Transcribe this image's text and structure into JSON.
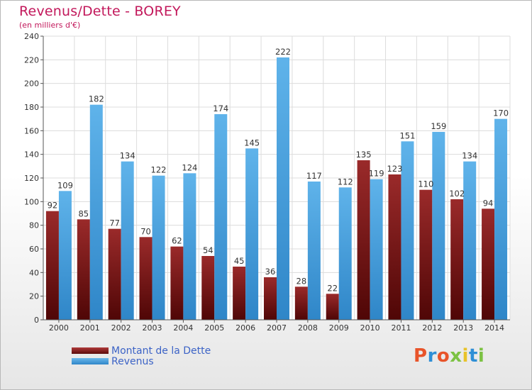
{
  "title": "Revenus/Dette - BOREY",
  "subtitle": "(en milliers d'€)",
  "logo": {
    "text": "Proxiti",
    "colors": [
      "#e8542a",
      "#2e8fd6",
      "#e8542a",
      "#7cc243",
      "#e8c32a",
      "#2e8fd6",
      "#7cc243"
    ]
  },
  "legend": [
    {
      "label": "Montant de la Dette",
      "color": "#7a1a1a"
    },
    {
      "label": "Revenus",
      "color": "#4aa3e0"
    }
  ],
  "chart_data": {
    "type": "bar",
    "categories": [
      "2000",
      "2001",
      "2002",
      "2003",
      "2004",
      "2005",
      "2006",
      "2007",
      "2008",
      "2009",
      "2010",
      "2011",
      "2012",
      "2013",
      "2014"
    ],
    "series": [
      {
        "name": "Montant de la Dette",
        "color": "#7a1a1a",
        "values": [
          92,
          85,
          77,
          70,
          62,
          54,
          45,
          36,
          28,
          22,
          135,
          123,
          110,
          102,
          94
        ]
      },
      {
        "name": "Revenus",
        "color": "#4aa3e0",
        "values": [
          109,
          182,
          134,
          122,
          124,
          174,
          145,
          222,
          117,
          112,
          119,
          151,
          159,
          134,
          170
        ]
      }
    ],
    "ylim": [
      0,
      240
    ],
    "yticks": [
      0,
      20,
      40,
      60,
      80,
      100,
      120,
      140,
      160,
      180,
      200,
      220,
      240
    ],
    "grid": true,
    "legend_position": "bottom-left"
  }
}
